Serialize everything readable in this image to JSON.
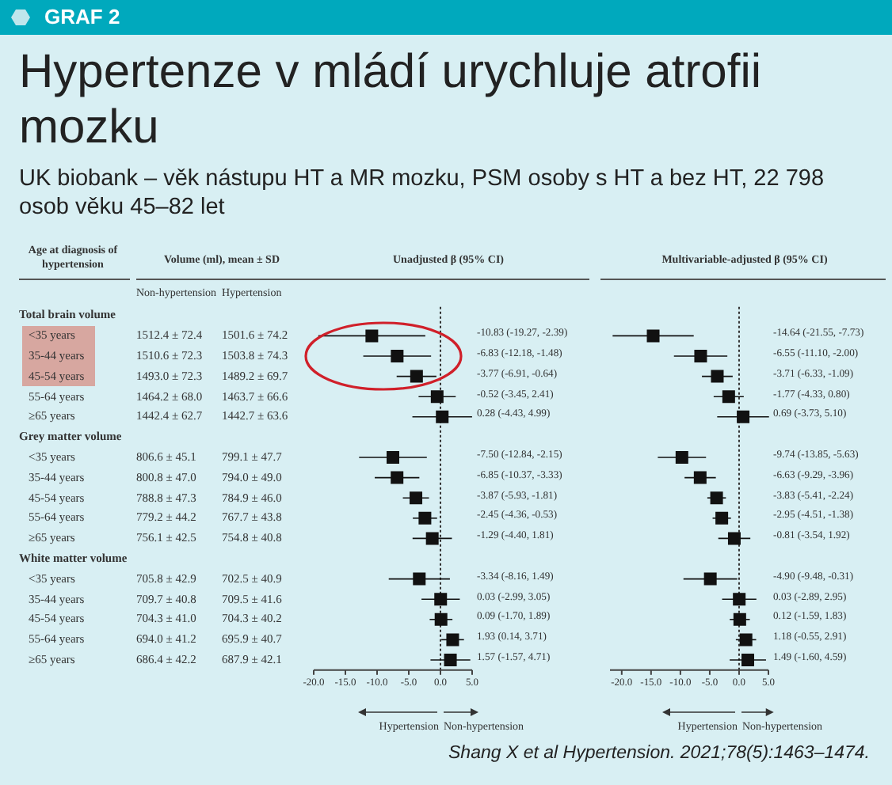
{
  "chart_data": [
    {
      "type": "other",
      "title": "Hypertenze v mládí urychluje atrofii mozku",
      "subtitle": "UK biobank – věk nástupu HT a MR mozku, PSM osoby s HT a bez HT, 22 798 osob věku 45–82 let",
      "annotations": [
        "GRAF 2",
        "Shang X et al Hypertension. 2021;78(5):1463–1474.",
        "Non-hypertension",
        "Hypertension",
        "1512.4 ± 72.4",
        "1501.6 ± 74.2",
        "1510.6 ± 72.3",
        "1503.8 ± 74.3",
        "1493.0 ± 72.3",
        "1489.2 ± 69.7",
        "1464.2 ± 68.0",
        "1463.7 ± 66.6",
        "1442.4 ± 62.7",
        "1442.7 ± 63.6",
        "806.6 ± 45.1",
        "799.1 ± 47.7",
        "800.8 ± 47.0",
        "794.0 ± 49.0",
        "788.8 ± 47.3",
        "784.9 ± 46.0",
        "779.2 ± 44.2",
        "767.7 ± 43.8",
        "756.1 ± 42.5",
        "754.8 ± 40.8",
        "705.8 ± 42.9",
        "702.5 ± 40.9",
        "709.7 ± 40.8",
        "709.5 ± 41.6",
        "704.3 ± 41.0",
        "704.3 ± 40.2",
        "694.0 ± 41.2",
        "695.9 ± 40.7",
        "686.4 ± 42.2",
        "687.9 ± 42.1"
      ],
      "xlabel": "Volume (ml), mean ± SD",
      "ylabel": "Age at diagnosis of hypertension",
      "categories": [
        "Total brain volume",
        "<35 years",
        "35-44 years",
        "45-54 years",
        "55-64 years",
        "≥65 years",
        "Grey matter volume",
        "<35 years",
        "35-44 years",
        "45-54 years",
        "55-64 years",
        "≥65 years",
        "White matter volume",
        "<35 years",
        "35-44 years",
        "45-54 years",
        "55-64 years",
        "≥65 years"
      ]
    },
    {
      "type": "scatter",
      "orientation": "horizontal",
      "title": "Unadjusted β (95% CI)",
      "tick_labels": "x",
      "marker": "square",
      "color": "#111111",
      "categories": [
        null,
        null,
        null,
        null,
        null,
        null,
        null,
        null,
        null,
        null,
        null,
        null,
        null,
        null,
        null,
        null,
        null,
        null
      ],
      "values": [
        null,
        -10.83,
        -6.83,
        -3.77,
        -0.52,
        0.28,
        null,
        -7.5,
        -6.85,
        -3.87,
        -2.45,
        -1.29,
        null,
        -3.34,
        0.03,
        0.09,
        1.93,
        1.57
      ],
      "errors": [
        null,
        [
          -19.27,
          -2.39
        ],
        [
          -12.18,
          -1.48
        ],
        [
          -6.91,
          -0.64
        ],
        [
          -3.45,
          2.41
        ],
        [
          -4.43,
          4.99
        ],
        null,
        [
          -12.84,
          -2.15
        ],
        [
          -10.37,
          -3.33
        ],
        [
          -5.93,
          -1.81
        ],
        [
          -4.36,
          -0.53
        ],
        [
          -4.4,
          1.81
        ],
        null,
        [
          -8.16,
          1.49
        ],
        [
          -2.99,
          3.05
        ],
        [
          -1.7,
          1.89
        ],
        [
          0.14,
          3.71
        ],
        [
          -1.57,
          4.71
        ]
      ],
      "xlim": [
        -20,
        5
      ],
      "xticks": [
        {
          "value": -20,
          "label": "-20.0"
        },
        {
          "value": -15,
          "label": "-15.0"
        },
        {
          "value": -10,
          "label": "-10.0"
        },
        {
          "value": -5,
          "label": "-5.0"
        },
        {
          "value": 0,
          "label": "0.0"
        },
        {
          "value": 5,
          "label": "5.0"
        }
      ],
      "ref_lines": [
        {
          "axis": "x",
          "value": 0,
          "line_style": "dotted"
        }
      ],
      "annotations": [
        "Hypertension",
        "Non-hypertension",
        "-10.83 (-19.27, -2.39)",
        "-6.83 (-12.18, -1.48)",
        "-3.77 (-6.91, -0.64)",
        "-0.52 (-3.45, 2.41)",
        "0.28 (-4.43, 4.99)",
        "-7.50 (-12.84, -2.15)",
        "-6.85 (-10.37, -3.33)",
        "-3.87 (-5.93, -1.81)",
        "-2.45 (-4.36, -0.53)",
        "-1.29 (-4.40, 1.81)",
        "-3.34 (-8.16, 1.49)",
        "0.03 (-2.99, 3.05)",
        "0.09 (-1.70, 1.89)",
        "1.93 (0.14, 3.71)",
        "1.57 (-1.57, 4.71)"
      ]
    },
    {
      "type": "scatter",
      "orientation": "horizontal",
      "title": "Multivariable-adjusted β (95% CI)",
      "tick_labels": "x",
      "marker": "square",
      "color": "#111111",
      "categories": [
        null,
        null,
        null,
        null,
        null,
        null,
        null,
        null,
        null,
        null,
        null,
        null,
        null,
        null,
        null,
        null,
        null,
        null
      ],
      "values": [
        null,
        -14.64,
        -6.55,
        -3.71,
        -1.77,
        0.69,
        null,
        -9.74,
        -6.63,
        -3.83,
        -2.95,
        -0.81,
        null,
        -4.9,
        0.03,
        0.12,
        1.18,
        1.49
      ],
      "errors": [
        null,
        [
          -21.55,
          -7.73
        ],
        [
          -11.1,
          -2.0
        ],
        [
          -6.33,
          -1.09
        ],
        [
          -4.33,
          0.8
        ],
        [
          -3.73,
          5.1
        ],
        null,
        [
          -13.85,
          -5.63
        ],
        [
          -9.29,
          -3.96
        ],
        [
          -5.41,
          -2.24
        ],
        [
          -4.51,
          -1.38
        ],
        [
          -3.54,
          1.92
        ],
        null,
        [
          -9.48,
          -0.31
        ],
        [
          -2.89,
          2.95
        ],
        [
          -1.59,
          1.83
        ],
        [
          -0.55,
          2.91
        ],
        [
          -1.6,
          4.59
        ]
      ],
      "xlim": [
        -22,
        5
      ],
      "xticks": [
        {
          "value": -20,
          "label": "-20.0"
        },
        {
          "value": -15,
          "label": "-15.0"
        },
        {
          "value": -10,
          "label": "-10.0"
        },
        {
          "value": -5,
          "label": "-5.0"
        },
        {
          "value": 0,
          "label": "0.0"
        },
        {
          "value": 5,
          "label": "5.0"
        }
      ],
      "ref_lines": [
        {
          "axis": "x",
          "value": 0,
          "line_style": "dotted"
        }
      ],
      "annotations": [
        "Hypertension",
        "Non-hypertension",
        "-14.64 (-21.55, -7.73)",
        "-6.55 (-11.10, -2.00)",
        "-3.71 (-6.33, -1.09)",
        "-1.77 (-4.33, 0.80)",
        "0.69 (-3.73, 5.10)",
        "-9.74 (-13.85, -5.63)",
        "-6.63 (-9.29, -3.96)",
        "-3.83 (-5.41, -2.24)",
        "-2.95 (-4.51, -1.38)",
        "-0.81 (-3.54, 1.92)",
        "-4.90 (-9.48, -0.31)",
        "0.03 (-2.89, 2.95)",
        "0.12 (-1.59, 1.83)",
        "1.18 (-0.55, 2.91)",
        "1.49 (-1.60, 4.59)"
      ]
    }
  ]
}
